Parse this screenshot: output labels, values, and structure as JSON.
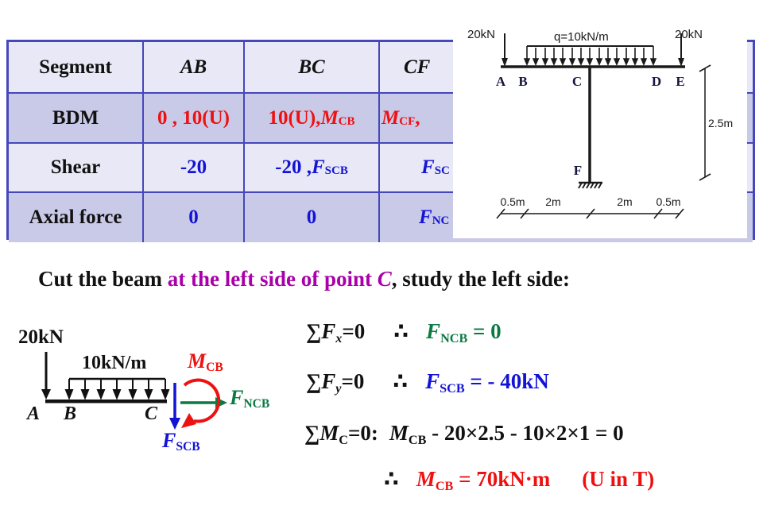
{
  "colors": {
    "red": "#ee1111",
    "blue": "#1313d6",
    "green": "#0b7a42",
    "magenta": "#aa00aa",
    "table_border": "#4547bb",
    "row_light": "#e8e8f6",
    "row_dark": "#c9c9e8"
  },
  "table": {
    "headers": {
      "segment": "Segment",
      "ab": "AB",
      "bc": "BC",
      "cf": "CF"
    },
    "rows": [
      {
        "label": "BDM",
        "ab": [
          {
            "t": "0 , 10(U)"
          }
        ],
        "bc": [
          {
            "t": "10(U), "
          },
          {
            "i": "M"
          },
          {
            "s": "CB"
          }
        ],
        "cf": [
          {
            "i": "M"
          },
          {
            "s": "CF"
          },
          {
            "t": " , "
          }
        ]
      },
      {
        "label": "Shear",
        "ab": [
          {
            "t": "-20"
          }
        ],
        "bc": [
          {
            "t": "-20 ,  "
          },
          {
            "i": "F"
          },
          {
            "s": "SCB"
          }
        ],
        "cf": [
          {
            "i": "F"
          },
          {
            "s": "SC"
          }
        ]
      },
      {
        "label": "Axial force",
        "ab": [
          {
            "t": "0"
          }
        ],
        "bc": [
          {
            "t": "0"
          }
        ],
        "cf": [
          {
            "i": "F"
          },
          {
            "s": "NC"
          }
        ]
      }
    ]
  },
  "frame": {
    "load_left": "20kN",
    "load_right": "20kN",
    "q_label": "q=10kN/m",
    "node_a": "A",
    "node_b": "B",
    "node_c": "C",
    "node_d": "D",
    "node_e": "E",
    "support": "F",
    "dim_height": "2.5m",
    "dim1": "0.5m",
    "dim2": "2m",
    "dim3": "2m",
    "dim4": "0.5m"
  },
  "cut_line": [
    {
      "t": "Cut the beam ",
      "c": "k"
    },
    {
      "t": "at the left side of point ",
      "c": "m"
    },
    {
      "i": "C",
      "c": "m"
    },
    {
      "t": ", study the left side:",
      "c": "k"
    }
  ],
  "fbd": {
    "point_load": "20kN",
    "dist_load": "10kN/m",
    "node_a": [
      {
        "i": "A"
      }
    ],
    "node_b": [
      {
        "i": "B"
      }
    ],
    "node_c": [
      {
        "i": "C"
      }
    ],
    "moment": [
      {
        "i": "M"
      },
      {
        "s": "CB"
      }
    ],
    "normal": [
      {
        "i": "F"
      },
      {
        "s": "NCB"
      }
    ],
    "shear": [
      {
        "i": "F"
      },
      {
        "s": "SCB"
      }
    ]
  },
  "equations": {
    "line1": {
      "lhs": [
        {
          "t": "∑"
        },
        {
          "i": "F"
        },
        {
          "si": "x"
        },
        {
          "t": "=0"
        }
      ],
      "therefore": "∴",
      "rhs": [
        {
          "i": "F"
        },
        {
          "s": "NCB"
        },
        {
          "t": " = 0"
        }
      ]
    },
    "line2": {
      "lhs": [
        {
          "t": "∑"
        },
        {
          "i": "F"
        },
        {
          "si": "y"
        },
        {
          "t": "=0"
        }
      ],
      "therefore": "∴",
      "rhs": [
        {
          "i": "F"
        },
        {
          "s": "SCB"
        },
        {
          "t": " = - 40kN"
        }
      ]
    },
    "line3": {
      "lhs": [
        {
          "t": "∑"
        },
        {
          "i": "M"
        },
        {
          "s": "C"
        },
        {
          "t": "=0:"
        }
      ],
      "rhs": [
        {
          "i": "M"
        },
        {
          "s": "CB"
        },
        {
          "t": " - 20×2.5 - 10×2×1 = 0"
        }
      ]
    },
    "line4": {
      "therefore": "∴",
      "rhs": [
        {
          "i": "M"
        },
        {
          "s": "CB"
        },
        {
          "t": " = 70kN·m"
        }
      ],
      "note": "(U in T)"
    }
  }
}
